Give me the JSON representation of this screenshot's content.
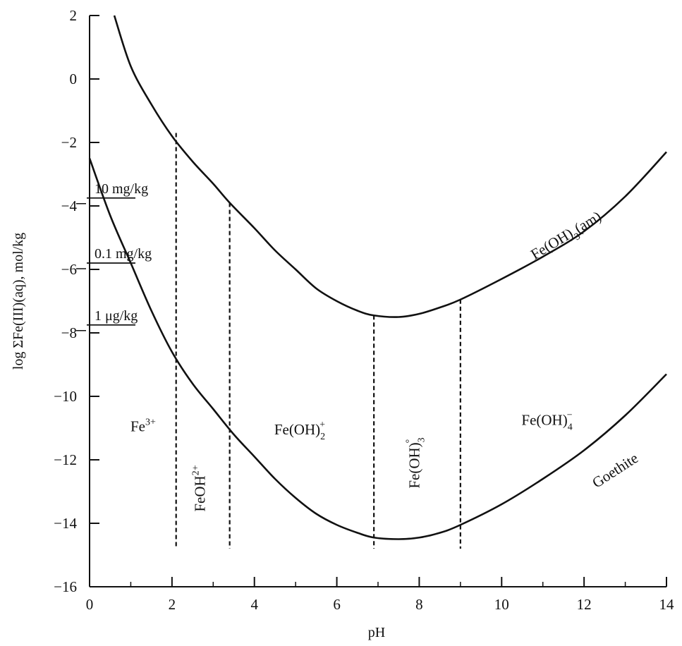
{
  "chart_data": {
    "type": "line",
    "title": "",
    "xlabel": "pH",
    "ylabel": "log ΣFe(III)(aq), mol/kg",
    "xlim": [
      0,
      14
    ],
    "ylim": [
      -16,
      2
    ],
    "x_ticks": [
      "0",
      "2",
      "4",
      "6",
      "8",
      "10",
      "12",
      "14"
    ],
    "y_ticks": [
      "2",
      "0",
      "−2",
      "−4",
      "−6",
      "−8",
      "−10",
      "−12",
      "−14",
      "−16"
    ],
    "grid": false,
    "series": [
      {
        "name": "Fe(OH)3(am)",
        "x": [
          0.6,
          1.0,
          1.5,
          2.0,
          2.5,
          3.0,
          3.4,
          4.0,
          4.5,
          5.0,
          5.5,
          6.0,
          6.5,
          6.9,
          7.5,
          8.0,
          8.5,
          9.0,
          10.0,
          11.0,
          12.0,
          13.0,
          14.0
        ],
        "y": [
          2.0,
          0.4,
          -0.8,
          -1.8,
          -2.6,
          -3.3,
          -3.9,
          -4.7,
          -5.4,
          -6.0,
          -6.6,
          -7.0,
          -7.3,
          -7.45,
          -7.5,
          -7.4,
          -7.2,
          -6.95,
          -6.3,
          -5.6,
          -4.8,
          -3.7,
          -2.3
        ]
      },
      {
        "name": "Goethite",
        "x": [
          0.0,
          0.5,
          1.0,
          1.5,
          2.0,
          2.5,
          3.0,
          3.5,
          4.0,
          4.5,
          5.0,
          5.5,
          6.0,
          6.5,
          6.9,
          7.5,
          8.0,
          8.5,
          9.0,
          10.0,
          11.0,
          12.0,
          13.0,
          14.0
        ],
        "y": [
          -2.5,
          -4.3,
          -5.8,
          -7.3,
          -8.6,
          -9.6,
          -10.4,
          -11.2,
          -11.9,
          -12.6,
          -13.2,
          -13.7,
          -14.05,
          -14.3,
          -14.45,
          -14.5,
          -14.45,
          -14.3,
          -14.05,
          -13.4,
          -12.6,
          -11.7,
          -10.6,
          -9.3
        ]
      }
    ],
    "curve_labels": [
      {
        "series": "Fe(OH)3(am)",
        "text": "Fe(OH)",
        "sub": "3",
        "after": "(am)"
      },
      {
        "series": "Goethite",
        "text": "Goethite"
      }
    ],
    "boundaries": [
      {
        "x": 2.1,
        "y_from": -1.7,
        "y_to": -14.8
      },
      {
        "x": 3.4,
        "y_from": -3.9,
        "y_to": -14.8
      },
      {
        "x": 6.9,
        "y_from": -7.45,
        "y_to": -14.8
      },
      {
        "x": 9.0,
        "y_from": -6.95,
        "y_to": -14.8
      }
    ],
    "regions": [
      {
        "text": "Fe",
        "sup": "3+",
        "x": 1.3,
        "y": -11.1
      },
      {
        "text": "FeOH",
        "sup": "2+",
        "x": 2.8,
        "y": -12.9,
        "rotate": -90
      },
      {
        "text": "Fe(OH)",
        "sub": "2",
        "sup": "+",
        "x": 5.1,
        "y": -11.2
      },
      {
        "text": "Fe(OH)",
        "sub": "3",
        "sup": "°",
        "x": 8.0,
        "y": -12.1,
        "rotate": -90
      },
      {
        "text": "Fe(OH)",
        "sub": "4",
        "sup": "−",
        "x": 11.1,
        "y": -10.9
      }
    ],
    "reference_levels": [
      {
        "label": "10 mg/kg",
        "y": -3.75
      },
      {
        "label": "0.1 mg/kg",
        "y": -5.8
      },
      {
        "label": "1 μg/kg",
        "y": -7.75
      }
    ]
  }
}
